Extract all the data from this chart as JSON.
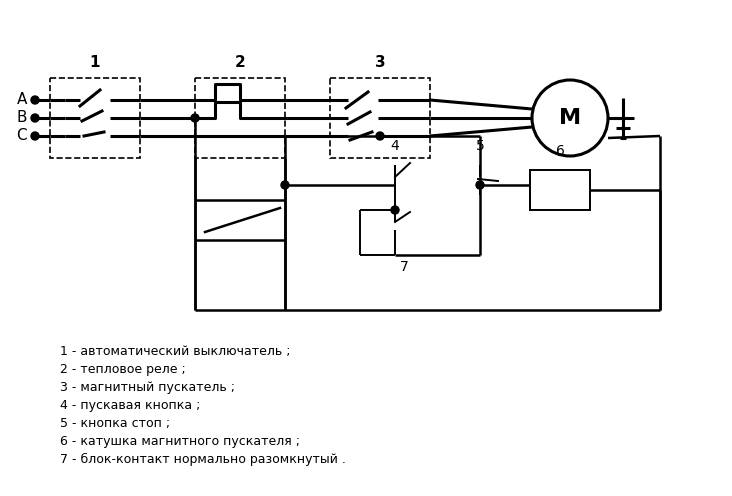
{
  "background_color": "#ffffff",
  "line_color": "#000000",
  "figsize": [
    7.32,
    4.96
  ],
  "dpi": 100,
  "legend": [
    "1 - автоматический выключатель ;",
    "2 - тепловое реле ;",
    "3 - магнитный пускатель ;",
    "4 - пускавая кнопка ;",
    "5 - кнопка стоп ;",
    "6 - катушка магнитного пускателя ;",
    "7 - блок-контакт нормально разомкнутый ."
  ]
}
